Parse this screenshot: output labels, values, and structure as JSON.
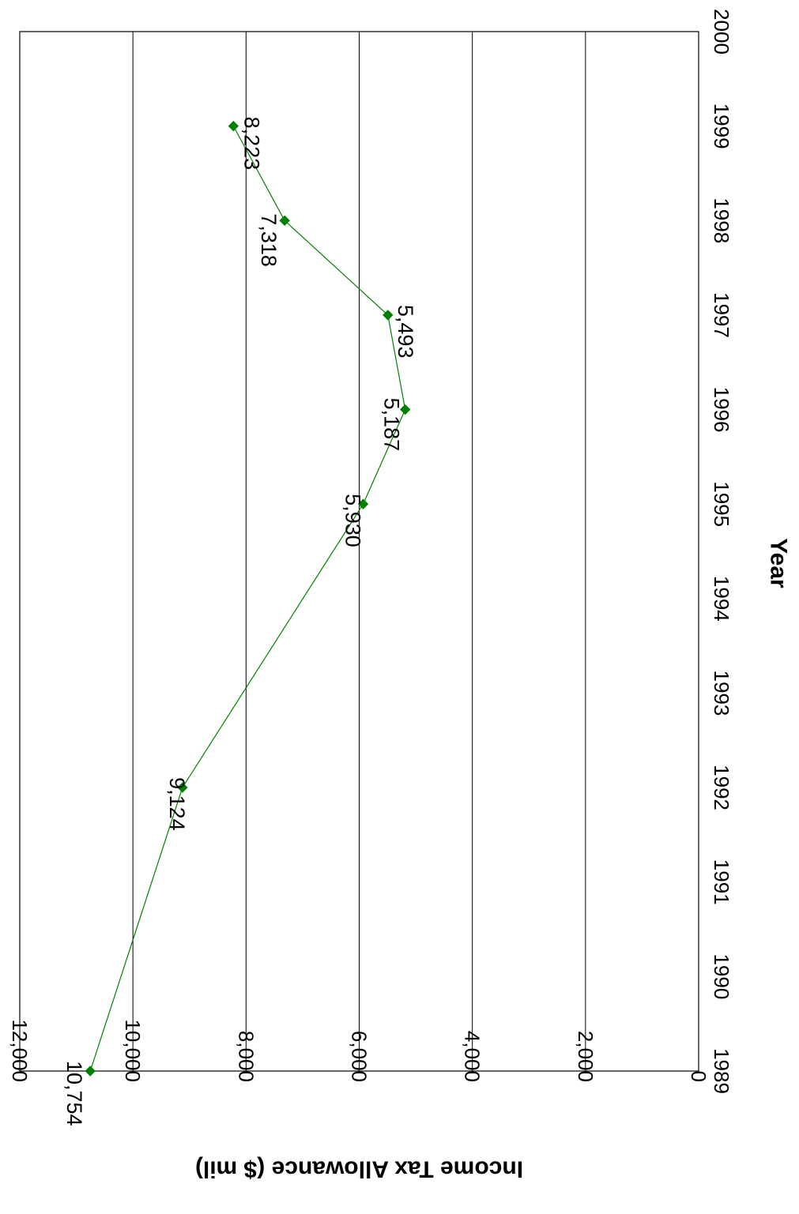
{
  "chart_data": {
    "type": "line",
    "title": "",
    "xlabel": "Year",
    "ylabel": "Income Tax Allowance ($ mil)",
    "x": [
      1989,
      1992,
      1995,
      1996,
      1997,
      1998,
      1999
    ],
    "x_ticks": [
      "1989",
      "1990",
      "1991",
      "1992",
      "1993",
      "1994",
      "1995",
      "1996",
      "1997",
      "1998",
      "1999",
      "2000"
    ],
    "xlim": [
      1989,
      2000
    ],
    "y_ticks": [
      "0",
      "2,000",
      "4,000",
      "6,000",
      "8,000",
      "10,000",
      "12,000"
    ],
    "ylim": [
      0,
      12000
    ],
    "grid": true,
    "orientation": "rotated 90 degrees clockwise (page viewed sideways)",
    "series": [
      {
        "values": [
          10754,
          9124,
          5930,
          5187,
          5493,
          7318,
          8223
        ],
        "data_labels": [
          "10,754",
          "9,124",
          "5,930",
          "5,187",
          "5,493",
          "7,318",
          "8,223"
        ],
        "color": "#008000",
        "marker": "diamond"
      }
    ]
  }
}
